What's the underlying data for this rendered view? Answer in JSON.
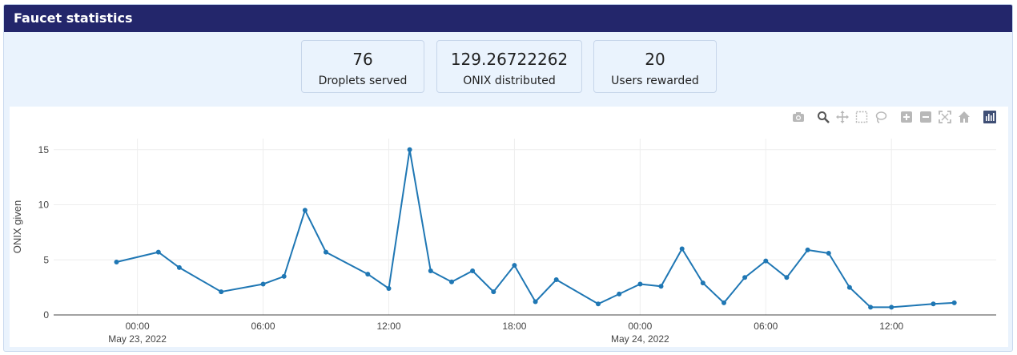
{
  "panel": {
    "title": "Faucet statistics"
  },
  "stats": [
    {
      "value": "76",
      "label": "Droplets served"
    },
    {
      "value": "129.26722262",
      "label": "ONIX distributed"
    },
    {
      "value": "20",
      "label": "Users rewarded"
    }
  ],
  "colors": {
    "header": "#23266b",
    "panel_bg": "#eaf3fd",
    "series": "#1f77b4"
  },
  "modebar_icons": [
    "camera-icon",
    "zoom-icon",
    "pan-icon",
    "box-select-icon",
    "lasso-icon",
    "zoom-in-icon",
    "zoom-out-icon",
    "autoscale-icon",
    "reset-axes-icon",
    "plotly-logo-icon"
  ],
  "chart_data": {
    "type": "line",
    "ylabel": "ONIX given",
    "xlabel": "",
    "ylim": [
      0,
      16
    ],
    "xlim": [
      "2022-05-22 20:00",
      "2022-05-24 17:00"
    ],
    "x_ticks": [
      {
        "t": "2022-05-23 00:00",
        "label": "00:00",
        "sublabel": "May 23, 2022"
      },
      {
        "t": "2022-05-23 06:00",
        "label": "06:00",
        "sublabel": ""
      },
      {
        "t": "2022-05-23 12:00",
        "label": "12:00",
        "sublabel": ""
      },
      {
        "t": "2022-05-23 18:00",
        "label": "18:00",
        "sublabel": ""
      },
      {
        "t": "2022-05-24 00:00",
        "label": "00:00",
        "sublabel": "May 24, 2022"
      },
      {
        "t": "2022-05-24 06:00",
        "label": "06:00",
        "sublabel": ""
      },
      {
        "t": "2022-05-24 12:00",
        "label": "12:00",
        "sublabel": ""
      }
    ],
    "y_ticks": [
      0,
      5,
      10,
      15
    ],
    "grid": true,
    "series": [
      {
        "x": [
          "2022-05-22 23:00",
          "2022-05-23 01:00",
          "2022-05-23 02:00",
          "2022-05-23 04:00",
          "2022-05-23 06:00",
          "2022-05-23 07:00",
          "2022-05-23 08:00",
          "2022-05-23 09:00",
          "2022-05-23 11:00",
          "2022-05-23 12:00",
          "2022-05-23 13:00",
          "2022-05-23 14:00",
          "2022-05-23 15:00",
          "2022-05-23 16:00",
          "2022-05-23 17:00",
          "2022-05-23 18:00",
          "2022-05-23 19:00",
          "2022-05-23 20:00",
          "2022-05-23 22:00",
          "2022-05-23 23:00",
          "2022-05-24 00:00",
          "2022-05-24 01:00",
          "2022-05-24 02:00",
          "2022-05-24 03:00",
          "2022-05-24 04:00",
          "2022-05-24 05:00",
          "2022-05-24 06:00",
          "2022-05-24 07:00",
          "2022-05-24 08:00",
          "2022-05-24 09:00",
          "2022-05-24 10:00",
          "2022-05-24 11:00",
          "2022-05-24 12:00",
          "2022-05-24 14:00",
          "2022-05-24 15:00"
        ],
        "values": [
          4.8,
          5.7,
          4.3,
          2.1,
          2.8,
          3.5,
          9.5,
          5.7,
          3.7,
          2.4,
          15.0,
          4.0,
          3.0,
          4.0,
          2.1,
          4.5,
          1.2,
          3.2,
          1.0,
          1.9,
          2.8,
          2.6,
          6.0,
          2.9,
          1.1,
          3.4,
          4.9,
          3.4,
          5.9,
          5.6,
          2.5,
          0.7,
          0.7,
          1.0,
          1.1
        ]
      }
    ]
  }
}
